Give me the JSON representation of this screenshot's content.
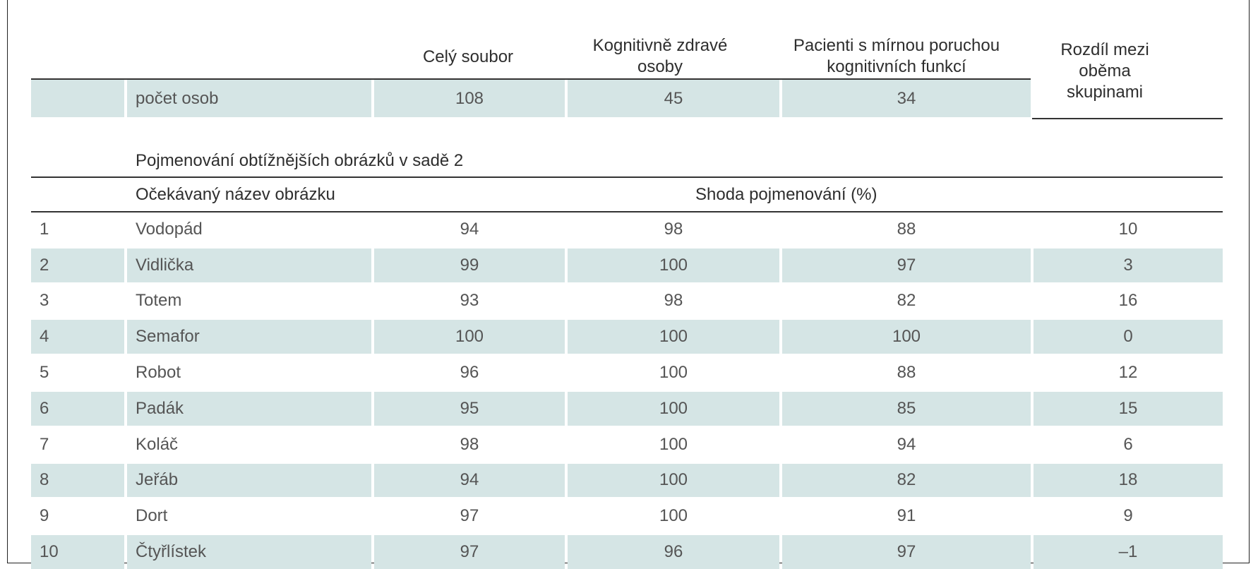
{
  "header": {
    "col_total": "Celý soubor",
    "col_healthy": "Kognitivně zdravé osoby",
    "col_mci": "Pacienti s mírnou poruchou kognitivních funkcí",
    "col_diff": "Rozdíl mezi oběma skupinami"
  },
  "count_row": {
    "label": "počet osob",
    "total": "108",
    "healthy": "45",
    "mci": "34"
  },
  "section_title": "Pojmenování obtížnějších obrázků v sadě 2",
  "subheader": {
    "name_col": "Očekávaný název obrázku",
    "agreement": "Shoda pojmenování (%)"
  },
  "rows": [
    {
      "n": "1",
      "name": "Vodopád",
      "total": "94",
      "healthy": "98",
      "mci": "88",
      "diff": "10"
    },
    {
      "n": "2",
      "name": "Vidlička",
      "total": "99",
      "healthy": "100",
      "mci": "97",
      "diff": "3"
    },
    {
      "n": "3",
      "name": "Totem",
      "total": "93",
      "healthy": "98",
      "mci": "82",
      "diff": "16"
    },
    {
      "n": "4",
      "name": "Semafor",
      "total": "100",
      "healthy": "100",
      "mci": "100",
      "diff": "0"
    },
    {
      "n": "5",
      "name": "Robot",
      "total": "96",
      "healthy": "100",
      "mci": "88",
      "diff": "12"
    },
    {
      "n": "6",
      "name": "Padák",
      "total": "95",
      "healthy": "100",
      "mci": "85",
      "diff": "15"
    },
    {
      "n": "7",
      "name": "Koláč",
      "total": "98",
      "healthy": "100",
      "mci": "94",
      "diff": "6"
    },
    {
      "n": "8",
      "name": "Jeřáb",
      "total": "94",
      "healthy": "100",
      "mci": "82",
      "diff": "18"
    },
    {
      "n": "9",
      "name": "Dort",
      "total": "97",
      "healthy": "100",
      "mci": "91",
      "diff": "9"
    },
    {
      "n": "10",
      "name": "Čtyřlístek",
      "total": "97",
      "healthy": "96",
      "mci": "97",
      "diff": "–1"
    }
  ]
}
